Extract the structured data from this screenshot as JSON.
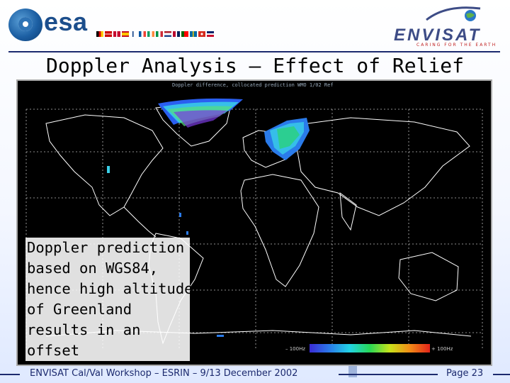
{
  "header": {
    "esa_logo_text": "esa",
    "envisat_logo_text": "ENVISAT",
    "envisat_tagline": "CARING FOR THE EARTH"
  },
  "title": "Doppler Analysis – Effect of Relief",
  "map": {
    "caption": "Doppler difference, collocated prediction  WMO 1/02 Ref",
    "scale_min": "– 100Hz",
    "scale_max": "+ 100Hz"
  },
  "note": {
    "lines": [
      "Doppler prediction",
      "based on WGS84,",
      "hence high altitude",
      "of Greenland",
      "results in an",
      "offset"
    ]
  },
  "footer": {
    "left_text": "ENVISAT Cal/Val Workshop – ESRIN – 9/13 December 2002",
    "page": "Page 23"
  }
}
